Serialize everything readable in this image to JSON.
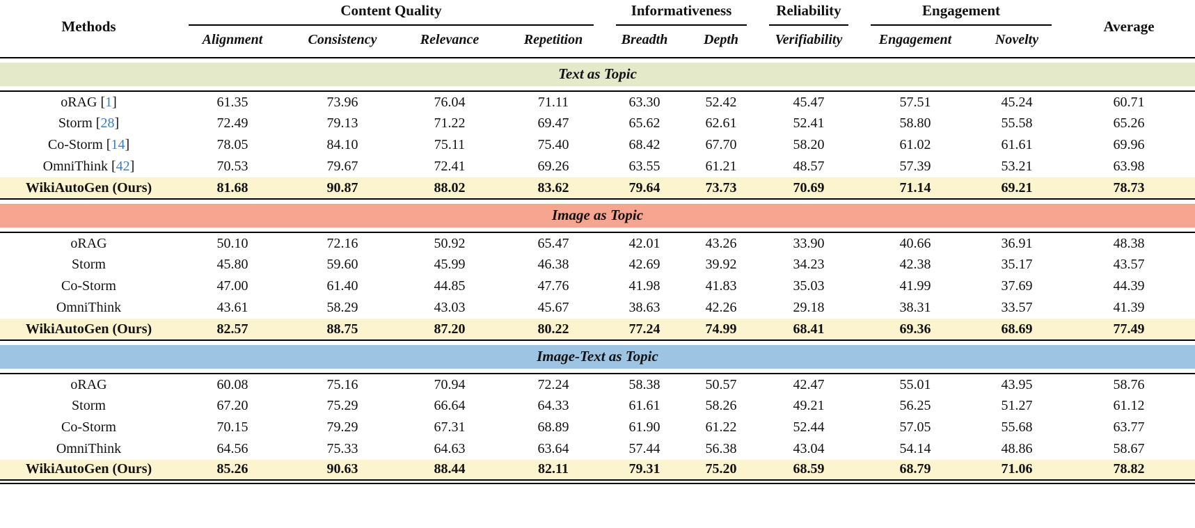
{
  "colors": {
    "text_band": "#e4e9c9",
    "image_band": "#f7a491",
    "image_text_band": "#9ec4e3",
    "highlight_row": "#fcf4ce",
    "citation_blue": "#3d7ebf"
  },
  "header": {
    "methods_label": "Methods",
    "average_label": "Average",
    "groups": [
      {
        "label": "Content Quality",
        "columns": [
          "Alignment",
          "Consistency",
          "Relevance",
          "Repetition"
        ]
      },
      {
        "label": "Informativeness",
        "columns": [
          "Breadth",
          "Depth"
        ]
      },
      {
        "label": "Reliability",
        "columns": [
          "Verifiability"
        ]
      },
      {
        "label": "Engagement",
        "columns": [
          "Engagement",
          "Novelty"
        ]
      }
    ]
  },
  "sections": [
    {
      "title": "Text as Topic",
      "band_color": "#e4e9c9",
      "rows": [
        {
          "method": "oRAG",
          "citation": "1",
          "highlight": false,
          "values": [
            "61.35",
            "73.96",
            "76.04",
            "71.11",
            "63.30",
            "52.42",
            "45.47",
            "57.51",
            "45.24",
            "60.71"
          ]
        },
        {
          "method": "Storm",
          "citation": "28",
          "highlight": false,
          "values": [
            "72.49",
            "79.13",
            "71.22",
            "69.47",
            "65.62",
            "62.61",
            "52.41",
            "58.80",
            "55.58",
            "65.26"
          ]
        },
        {
          "method": "Co-Storm",
          "citation": "14",
          "highlight": false,
          "values": [
            "78.05",
            "84.10",
            "75.11",
            "75.40",
            "68.42",
            "67.70",
            "58.20",
            "61.02",
            "61.61",
            "69.96"
          ]
        },
        {
          "method": "OmniThink",
          "citation": "42",
          "highlight": false,
          "values": [
            "70.53",
            "79.67",
            "72.41",
            "69.26",
            "63.55",
            "61.21",
            "48.57",
            "57.39",
            "53.21",
            "63.98"
          ]
        },
        {
          "method": "WikiAutoGen (Ours)",
          "citation": "",
          "highlight": true,
          "values": [
            "81.68",
            "90.87",
            "88.02",
            "83.62",
            "79.64",
            "73.73",
            "70.69",
            "71.14",
            "69.21",
            "78.73"
          ]
        }
      ]
    },
    {
      "title": "Image as Topic",
      "band_color": "#f7a491",
      "rows": [
        {
          "method": "oRAG",
          "citation": "",
          "highlight": false,
          "values": [
            "50.10",
            "72.16",
            "50.92",
            "65.47",
            "42.01",
            "43.26",
            "33.90",
            "40.66",
            "36.91",
            "48.38"
          ]
        },
        {
          "method": "Storm",
          "citation": "",
          "highlight": false,
          "values": [
            "45.80",
            "59.60",
            "45.99",
            "46.38",
            "42.69",
            "39.92",
            "34.23",
            "42.38",
            "35.17",
            "43.57"
          ]
        },
        {
          "method": "Co-Storm",
          "citation": "",
          "highlight": false,
          "values": [
            "47.00",
            "61.40",
            "44.85",
            "47.76",
            "41.98",
            "41.83",
            "35.03",
            "41.99",
            "37.69",
            "44.39"
          ]
        },
        {
          "method": "OmniThink",
          "citation": "",
          "highlight": false,
          "values": [
            "43.61",
            "58.29",
            "43.03",
            "45.67",
            "38.63",
            "42.26",
            "29.18",
            "38.31",
            "33.57",
            "41.39"
          ]
        },
        {
          "method": "WikiAutoGen (Ours)",
          "citation": "",
          "highlight": true,
          "values": [
            "82.57",
            "88.75",
            "87.20",
            "80.22",
            "77.24",
            "74.99",
            "68.41",
            "69.36",
            "68.69",
            "77.49"
          ]
        }
      ]
    },
    {
      "title": "Image-Text as Topic",
      "band_color": "#9ec4e3",
      "rows": [
        {
          "method": "oRAG",
          "citation": "",
          "highlight": false,
          "values": [
            "60.08",
            "75.16",
            "70.94",
            "72.24",
            "58.38",
            "50.57",
            "42.47",
            "55.01",
            "43.95",
            "58.76"
          ]
        },
        {
          "method": "Storm",
          "citation": "",
          "highlight": false,
          "values": [
            "67.20",
            "75.29",
            "66.64",
            "64.33",
            "61.61",
            "58.26",
            "49.21",
            "56.25",
            "51.27",
            "61.12"
          ]
        },
        {
          "method": "Co-Storm",
          "citation": "",
          "highlight": false,
          "values": [
            "70.15",
            "79.29",
            "67.31",
            "68.89",
            "61.90",
            "61.22",
            "52.44",
            "57.05",
            "55.68",
            "63.77"
          ]
        },
        {
          "method": "OmniThink",
          "citation": "",
          "highlight": false,
          "values": [
            "64.56",
            "75.33",
            "64.63",
            "63.64",
            "57.44",
            "56.38",
            "43.04",
            "54.14",
            "48.86",
            "58.67"
          ]
        },
        {
          "method": "WikiAutoGen (Ours)",
          "citation": "",
          "highlight": true,
          "values": [
            "85.26",
            "90.63",
            "88.44",
            "82.11",
            "79.31",
            "75.20",
            "68.59",
            "68.79",
            "71.06",
            "78.82"
          ]
        }
      ]
    }
  ]
}
